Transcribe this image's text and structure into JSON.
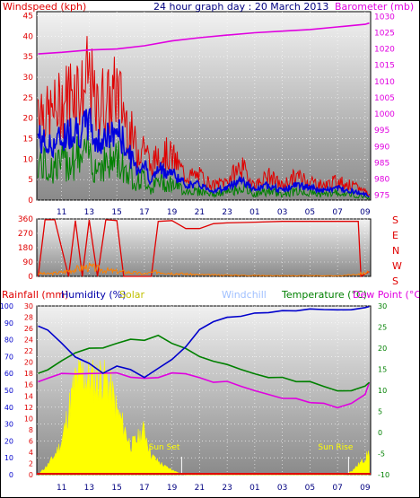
{
  "colors": {
    "wind": "#e00000",
    "wind_avg": "#0000dd",
    "wind_gust_low": "#008000",
    "barometer": "#e000e0",
    "winddir": "#e00000",
    "windspeed_small": "#ff7f00",
    "rain": "#e00000",
    "humidity": "#0000cc",
    "solar": "#ffff00",
    "windchill": "#a0c0ff",
    "temperature": "#008000",
    "dewpoint": "#e000e0",
    "sun_text": "#ffff00",
    "frame_bg_top": "#f2f2f2",
    "frame_bg_bottom": "#888888"
  },
  "chart_data": [
    {
      "type": "line",
      "title": "24 hour graph day : 20 March 2013",
      "ylabel_left": "Windspeed (kph)",
      "ylabel_right": "Barometer (mb)",
      "x_tick_labels": [
        "11",
        "13",
        "15",
        "17",
        "19",
        "21",
        "23",
        "01",
        "03",
        "05",
        "07",
        "09"
      ],
      "x_hours": [
        11,
        13,
        15,
        17,
        19,
        21,
        23,
        25,
        27,
        29,
        31,
        33
      ],
      "x_range": [
        9.2,
        33.4
      ],
      "left_ticks": [
        0,
        5,
        10,
        15,
        20,
        25,
        30,
        35,
        40,
        45
      ],
      "left_range": [
        0,
        46
      ],
      "right_ticks": [
        975,
        980,
        985,
        990,
        995,
        1000,
        1005,
        1010,
        1015,
        1020,
        1025,
        1030
      ],
      "right_range": [
        973.5,
        1031.5
      ],
      "series": [
        {
          "name": "Windspeed (kph)",
          "hours": [
            9.3,
            10,
            11,
            12,
            12.5,
            13,
            13.5,
            14,
            14.5,
            15,
            16,
            16.5,
            17,
            17.5,
            18,
            19,
            20,
            21,
            22,
            23,
            24,
            25,
            26,
            27,
            28,
            29,
            30,
            31,
            32,
            33,
            33.3
          ],
          "values": [
            21,
            17,
            20,
            24,
            22,
            26,
            18,
            21,
            20,
            23,
            14,
            10,
            12,
            6,
            10,
            9,
            5,
            5,
            3,
            4,
            7,
            3,
            5,
            3,
            5,
            4,
            3,
            4,
            3,
            2,
            1
          ]
        },
        {
          "name": "Barometer (mb)",
          "hours": [
            9.3,
            11,
            13,
            15,
            17,
            19,
            21,
            23,
            25,
            27,
            29,
            31,
            33,
            33.3
          ],
          "values": [
            1018.5,
            1019,
            1019.7,
            1020,
            1021,
            1022.5,
            1023.5,
            1024.3,
            1025,
            1025.5,
            1026,
            1026.8,
            1027.6,
            1028
          ]
        }
      ]
    },
    {
      "type": "line",
      "ylabel_left_ticks": [
        0,
        90,
        180,
        270,
        360
      ],
      "right_labels": [
        "S",
        "E",
        "N",
        "W",
        "S"
      ],
      "left_range": [
        0,
        360
      ],
      "series": [
        {
          "name": "Wind direction",
          "hours": [
            9.3,
            9.8,
            10.5,
            11.5,
            12,
            12.5,
            13,
            13.6,
            14.2,
            15,
            15.5,
            16,
            17.5,
            18,
            19,
            20,
            21,
            21.5,
            22,
            23,
            25,
            27,
            29,
            31,
            32.5,
            32.7,
            33.3
          ],
          "values": [
            0,
            355,
            355,
            0,
            350,
            0,
            355,
            0,
            355,
            350,
            0,
            0,
            0,
            345,
            350,
            300,
            300,
            315,
            330,
            335,
            340,
            345,
            345,
            345,
            345,
            0,
            30
          ]
        },
        {
          "name": "Windspeed",
          "hours": [
            9.3,
            10,
            11,
            12,
            13,
            14,
            15,
            16,
            17,
            18,
            19,
            21,
            23,
            25,
            27,
            29,
            31,
            32,
            33,
            33.3
          ],
          "values": [
            20,
            15,
            25,
            45,
            60,
            40,
            30,
            25,
            15,
            30,
            20,
            10,
            8,
            6,
            4,
            5,
            3,
            10,
            20,
            35
          ]
        }
      ]
    },
    {
      "type": "line",
      "ylabel_rain": "Rainfall (mm)",
      "ylabel_humidity": "Humidity (%)",
      "ylabel_solar": "Solar",
      "ylabel_windchill": "Windchill",
      "ylabel_temperature": "Temperature (°C)",
      "ylabel_dewpoint": "Dew Point (°C)",
      "humidity_ticks": [
        0,
        10,
        20,
        30,
        40,
        50,
        60,
        70,
        80,
        90,
        100
      ],
      "rain_ticks": [
        0,
        2,
        4,
        6,
        8,
        10,
        12,
        14,
        16,
        18,
        20,
        22,
        24,
        26,
        28,
        30
      ],
      "temp_ticks": [
        -10,
        -5,
        0,
        5,
        10,
        15,
        20,
        25,
        30
      ],
      "humidity_range": [
        0,
        100
      ],
      "temp_range": [
        -10,
        30
      ],
      "sun_set_label": "Sun Set",
      "sun_rise_label": "Sun Rise",
      "sun_set_hour": 19.7,
      "sun_rise_hour": 31.8,
      "series": [
        {
          "name": "Humidity (%)",
          "hours": [
            9.3,
            10,
            11,
            12,
            13,
            14,
            15,
            16,
            17,
            18,
            19,
            20,
            21,
            22,
            23,
            24,
            25,
            26,
            27,
            28,
            29,
            30,
            31,
            32,
            33,
            33.3
          ],
          "values": [
            88,
            86,
            78,
            70,
            66,
            60,
            64,
            62,
            58,
            63,
            68,
            76,
            86,
            91,
            93,
            94,
            96,
            96,
            97,
            97,
            98,
            98,
            98,
            98,
            99,
            100
          ]
        },
        {
          "name": "Temperature (°C)",
          "hours": [
            9.3,
            10,
            11,
            12,
            13,
            14,
            15,
            16,
            17,
            18,
            19,
            20,
            21,
            22,
            23,
            24,
            25,
            26,
            27,
            28,
            29,
            30,
            31,
            32,
            33,
            33.3
          ],
          "values": [
            14,
            15,
            17,
            19,
            20,
            20,
            21,
            22,
            22,
            23,
            21,
            20,
            18,
            17,
            16,
            15,
            14,
            13,
            13,
            12,
            12,
            11,
            10,
            10,
            11,
            12
          ]
        },
        {
          "name": "Dew Point (°C)",
          "hours": [
            9.3,
            10,
            11,
            12,
            13,
            14,
            15,
            16,
            17,
            18,
            19,
            20,
            21,
            22,
            23,
            24,
            25,
            26,
            27,
            28,
            29,
            30,
            31,
            32,
            33,
            33.3
          ],
          "values": [
            12,
            13,
            14,
            14,
            14,
            14,
            14,
            13,
            13,
            13,
            14,
            14,
            13,
            12,
            12,
            11,
            10,
            9,
            8,
            8,
            7,
            7,
            6,
            7,
            9,
            12
          ]
        },
        {
          "name": "Rainfall (mm)",
          "hours": [
            9.3,
            33.3
          ],
          "values": [
            0,
            0
          ]
        },
        {
          "name": "Solar",
          "hours": [
            9.3,
            10,
            10.5,
            11,
            11.5,
            12,
            12.5,
            13,
            13.5,
            14,
            14.5,
            15,
            15.5,
            16,
            16.5,
            17,
            17.5,
            18,
            18.5,
            19,
            19.5,
            20,
            31.5,
            32,
            32.5,
            33,
            33.3
          ],
          "values": [
            0,
            6,
            12,
            20,
            40,
            58,
            62,
            60,
            58,
            62,
            55,
            40,
            30,
            18,
            22,
            28,
            12,
            8,
            5,
            3,
            1,
            0,
            0,
            2,
            6,
            10,
            14
          ]
        }
      ]
    }
  ]
}
